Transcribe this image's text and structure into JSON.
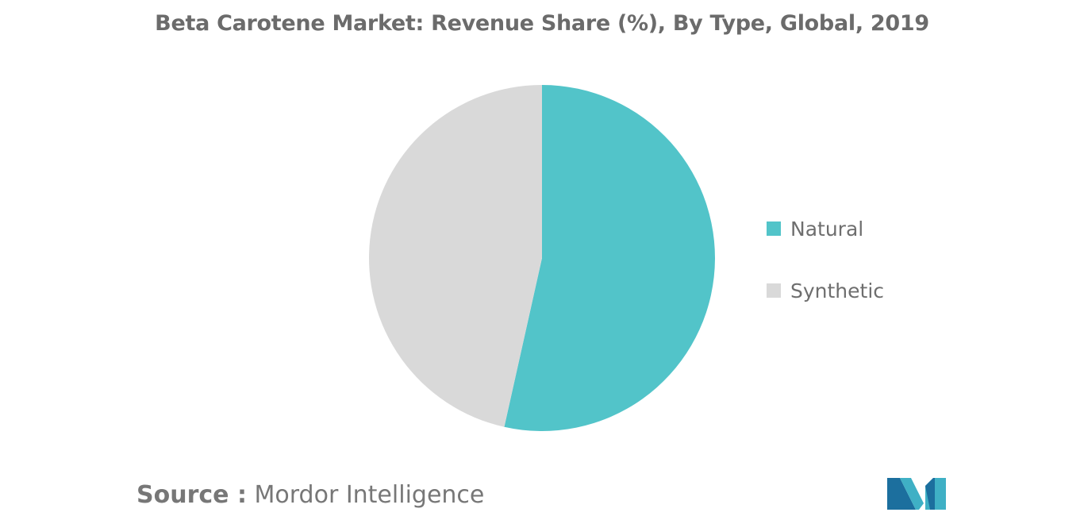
{
  "title": "Beta Carotene Market: Revenue Share (%), By Type, Global, 2019",
  "chart_data": {
    "type": "pie",
    "title": "Beta Carotene Market: Revenue Share (%), By Type, Global, 2019",
    "categories": [
      "Natural",
      "Synthetic"
    ],
    "values": [
      53.5,
      46.5
    ],
    "colors": [
      "#52c4c9",
      "#d9d9d9"
    ],
    "start_angle_deg": 0,
    "direction": "clockwise",
    "legend_position": "right"
  },
  "legend": [
    {
      "label": "Natural",
      "color": "#52c4c9"
    },
    {
      "label": "Synthetic",
      "color": "#d9d9d9"
    }
  ],
  "source": {
    "prefix": "Source :",
    "name": "Mordor Intelligence"
  },
  "logo": {
    "icon": "mordor-intelligence-logo-icon",
    "colors": [
      "#1c6f9e",
      "#3fb0c5"
    ]
  }
}
